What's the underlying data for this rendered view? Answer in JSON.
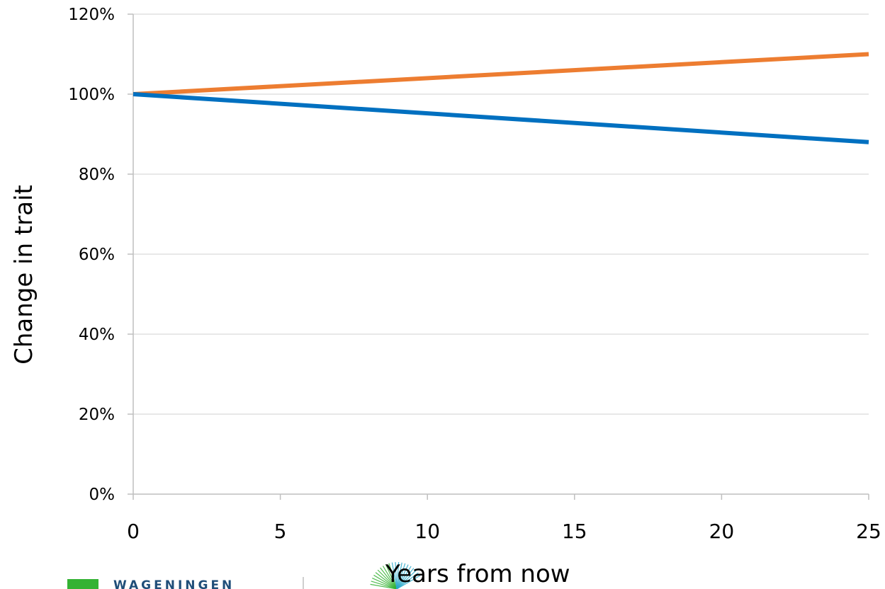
{
  "chart_data": {
    "type": "line",
    "title": "",
    "xlabel": "Years from now",
    "ylabel": "Change in trait",
    "xlim": [
      0,
      25
    ],
    "ylim": [
      0,
      1.2
    ],
    "x_ticks": [
      0,
      5,
      10,
      15,
      20,
      25
    ],
    "x_tick_labels": [
      "0",
      "5",
      "10",
      "15",
      "20",
      "25"
    ],
    "y_ticks": [
      0,
      0.2,
      0.4,
      0.6,
      0.8,
      1.0,
      1.2
    ],
    "y_tick_labels": [
      "0%",
      "20%",
      "40%",
      "60%",
      "80%",
      "100%",
      "120%"
    ],
    "grid": "horizontal",
    "legend": "none",
    "series": [
      {
        "color": "#ed7d31",
        "x": [
          0,
          25
        ],
        "y": [
          1.0,
          1.1
        ]
      },
      {
        "color": "#0070c0",
        "x": [
          0,
          25
        ],
        "y": [
          1.0,
          0.88
        ]
      }
    ]
  },
  "logo": {
    "text": "WAGENINGEN",
    "accent": "#34b233"
  }
}
